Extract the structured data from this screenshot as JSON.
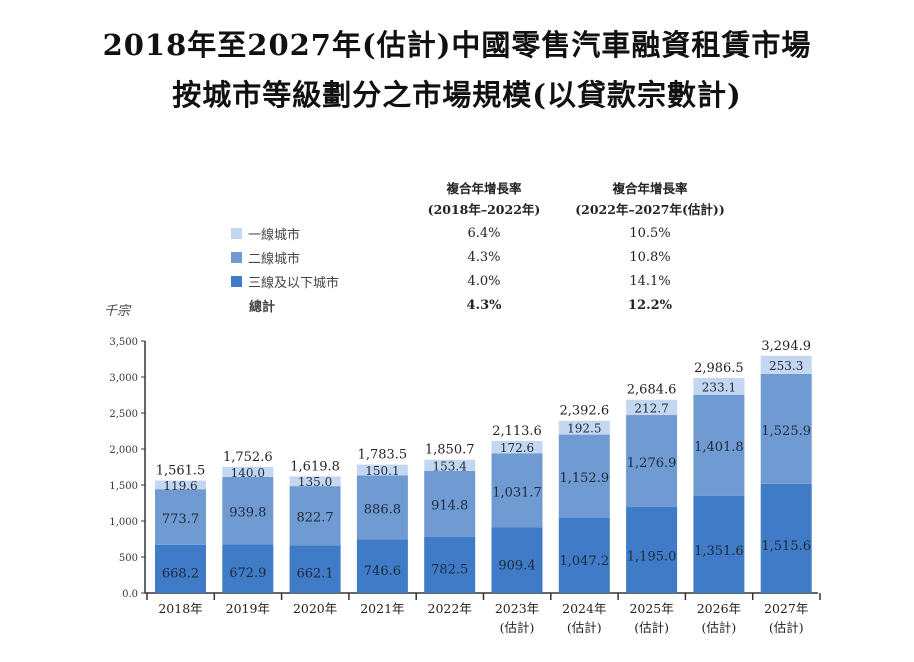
{
  "title_lines": [
    "2018年至2027年(估計)中國零售汽車融資租賃市場",
    "按城市等級劃分之市場規模(以貸款宗數計)"
  ],
  "cagr_table": {
    "headers": [
      {
        "line1": "複合年增長率",
        "line2": "(2018年–2022年)"
      },
      {
        "line1": "複合年增長率",
        "line2": "(2022年–2027年(估計))"
      }
    ],
    "rows": [
      {
        "label": "一線城市",
        "color": "#c3d8f0",
        "v1": "6.4%",
        "v2": "10.5%"
      },
      {
        "label": "二線城市",
        "color": "#6f9bd2",
        "v1": "4.3%",
        "v2": "10.8%"
      },
      {
        "label": "三線及以下城市",
        "color": "#3f7bc6",
        "v1": "4.0%",
        "v2": "14.1%"
      },
      {
        "label": "總計",
        "v1": "4.3%",
        "v2": "12.2%"
      }
    ]
  },
  "chart_data": {
    "type": "bar",
    "stacked": true,
    "ylabel": "千宗",
    "ylim": [
      0,
      3500
    ],
    "yticks": [
      "0.0",
      "500",
      "1,000",
      "1,500",
      "2,000",
      "2,500",
      "3,000",
      "3,500"
    ],
    "ytick_values": [
      0,
      500,
      1000,
      1500,
      2000,
      2500,
      3000,
      3500
    ],
    "categories": [
      [
        "2018年",
        ""
      ],
      [
        "2019年",
        ""
      ],
      [
        "2020年",
        ""
      ],
      [
        "2021年",
        ""
      ],
      [
        "2022年",
        ""
      ],
      [
        "2023年",
        "(估計)"
      ],
      [
        "2024年",
        "(估計)"
      ],
      [
        "2025年",
        "(估計)"
      ],
      [
        "2026年",
        "(估計)"
      ],
      [
        "2027年",
        "(估計)"
      ]
    ],
    "series": [
      {
        "name": "三線及以下城市",
        "color": "#3f7bc6",
        "values": [
          668.2,
          672.9,
          662.1,
          746.6,
          782.5,
          909.4,
          1047.2,
          1195.0,
          1351.6,
          1515.6
        ],
        "labels": [
          "668.2",
          "672.9",
          "662.1",
          "746.6",
          "782.5",
          "909.4",
          "1,047.2",
          "1,195.0",
          "1,351.6",
          "1,515.6"
        ]
      },
      {
        "name": "二線城市",
        "color": "#6f9bd2",
        "values": [
          773.7,
          939.8,
          822.7,
          886.8,
          914.8,
          1031.7,
          1152.9,
          1276.9,
          1401.8,
          1525.9
        ],
        "labels": [
          "773.7",
          "939.8",
          "822.7",
          "886.8",
          "914.8",
          "1,031.7",
          "1,152.9",
          "1,276.9",
          "1,401.8",
          "1,525.9"
        ]
      },
      {
        "name": "一線城市",
        "color": "#c3d8f0",
        "values": [
          119.6,
          140.0,
          135.0,
          150.1,
          153.4,
          172.6,
          192.5,
          212.7,
          233.1,
          253.3
        ],
        "labels": [
          "119.6",
          "140.0",
          "135.0",
          "150.1",
          "153.4",
          "172.6",
          "192.5",
          "212.7",
          "233.1",
          "253.3"
        ]
      }
    ],
    "totals": [
      "1,561.5",
      "1,752.6",
      "1,619.8",
      "1,783.5",
      "1,850.7",
      "2,113.6",
      "2,392.6",
      "2,684.6",
      "2,986.5",
      "3,294.9"
    ],
    "total_values": [
      1561.5,
      1752.6,
      1619.8,
      1783.5,
      1850.7,
      2113.6,
      2392.6,
      2684.6,
      2986.5,
      3294.9
    ],
    "grid": false,
    "legend": "top"
  }
}
